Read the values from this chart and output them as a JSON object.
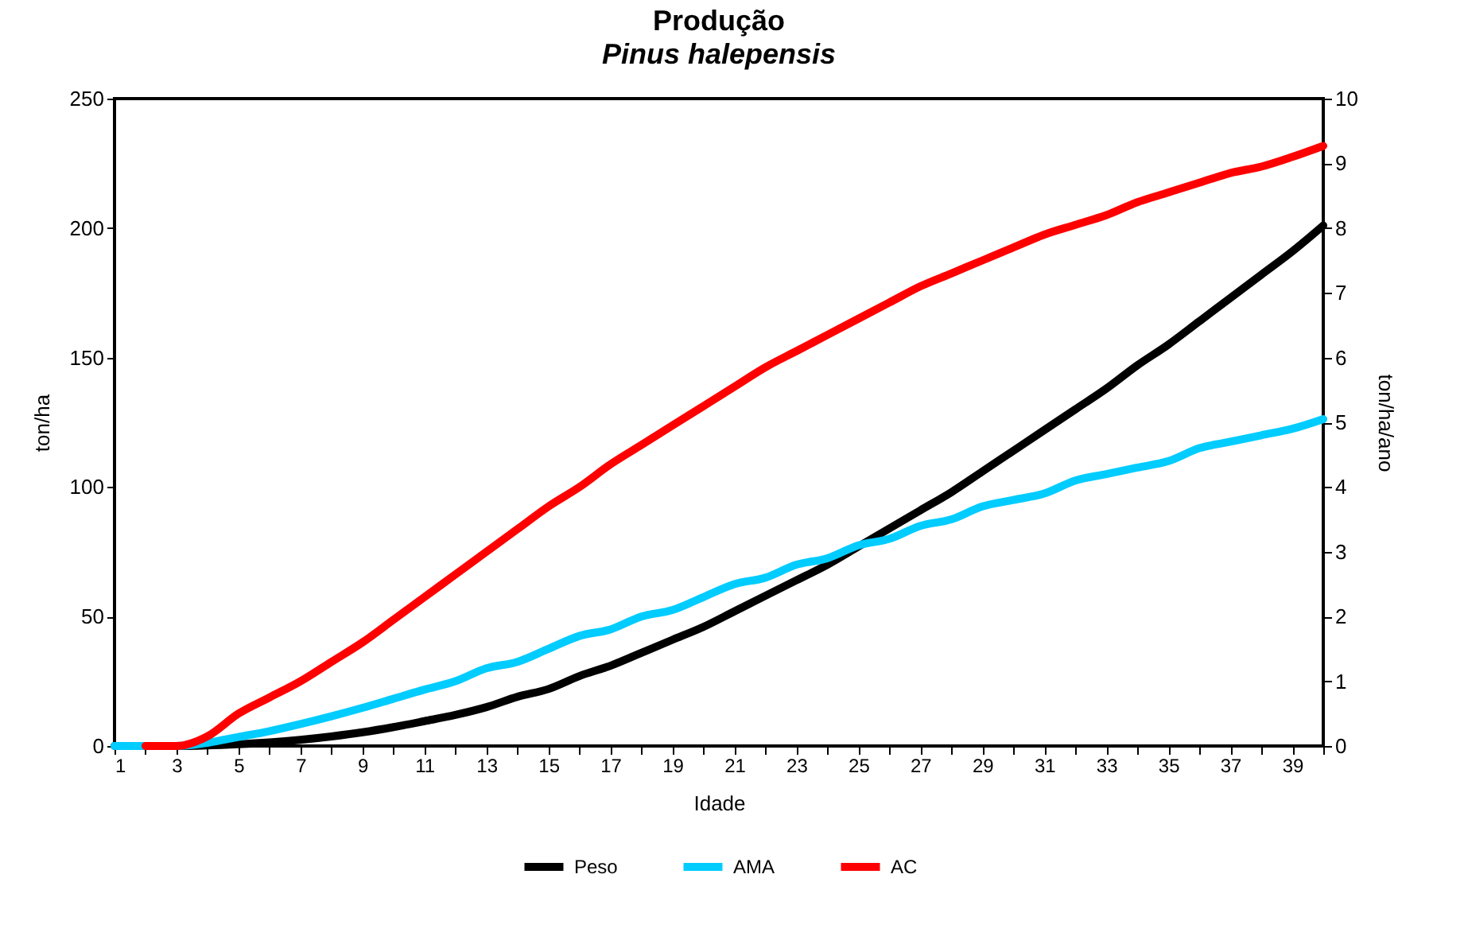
{
  "chart_data": {
    "type": "line",
    "title": "Produção",
    "subtitle": "Pinus halepensis",
    "xlabel": "Idade",
    "ylabel": "ton/ha",
    "y2label": "ton/ha/ano",
    "x": [
      1,
      2,
      3,
      4,
      5,
      6,
      7,
      8,
      9,
      10,
      11,
      12,
      13,
      14,
      15,
      16,
      17,
      18,
      19,
      20,
      21,
      22,
      23,
      24,
      25,
      26,
      27,
      28,
      29,
      30,
      31,
      32,
      33,
      34,
      35,
      36,
      37,
      38,
      39,
      40
    ],
    "xlim": [
      1,
      40
    ],
    "xticks": [
      1,
      {
        "value": 2,
        "label": null
      },
      3,
      {
        "value": 4,
        "label": null
      },
      5,
      {
        "value": 6,
        "label": null
      },
      7,
      {
        "value": 8,
        "label": null
      },
      9,
      {
        "value": 10,
        "label": null
      },
      11,
      {
        "value": 12,
        "label": null
      },
      13,
      {
        "value": 14,
        "label": null
      },
      15,
      {
        "value": 16,
        "label": null
      },
      17,
      {
        "value": 18,
        "label": null
      },
      19,
      {
        "value": 20,
        "label": null
      },
      21,
      {
        "value": 22,
        "label": null
      },
      23,
      {
        "value": 24,
        "label": null
      },
      25,
      {
        "value": 26,
        "label": null
      },
      27,
      {
        "value": 28,
        "label": null
      },
      29,
      {
        "value": 30,
        "label": null
      },
      31,
      {
        "value": 32,
        "label": null
      },
      33,
      {
        "value": 34,
        "label": null
      },
      35,
      {
        "value": 36,
        "label": null
      },
      37,
      {
        "value": 38,
        "label": null
      },
      39,
      {
        "value": 40,
        "label": null
      }
    ],
    "series": [
      {
        "name": "Peso",
        "color": "#000000",
        "values": [
          0,
          0,
          0,
          0.2,
          0.7,
          1.4,
          2.4,
          3.7,
          5.3,
          7.3,
          9.6,
          12,
          15,
          19,
          22,
          27,
          31,
          36,
          41,
          46,
          52,
          58,
          64,
          70,
          77,
          84,
          91,
          98,
          106,
          114,
          122,
          130,
          138,
          147,
          155,
          164,
          173,
          182,
          191,
          201
        ]
      },
      {
        "name": "AMA",
        "color": "#00ccff",
        "axis": "y2",
        "values": [
          0,
          0,
          0,
          0.05,
          0.14,
          0.23,
          0.34,
          0.46,
          0.59,
          0.73,
          0.87,
          1.0,
          1.2,
          1.3,
          1.5,
          1.7,
          1.8,
          2.0,
          2.1,
          2.3,
          2.5,
          2.6,
          2.8,
          2.9,
          3.1,
          3.2,
          3.4,
          3.5,
          3.7,
          3.8,
          3.9,
          4.1,
          4.2,
          4.3,
          4.4,
          4.6,
          4.7,
          4.8,
          4.9,
          5.05
        ]
      },
      {
        "name": "AC",
        "color": "#ff0000",
        "axis": "y2",
        "values": [
          null,
          0,
          0,
          0.15,
          0.5,
          0.75,
          1.0,
          1.3,
          1.6,
          1.95,
          2.3,
          2.65,
          3.0,
          3.35,
          3.7,
          4.0,
          4.35,
          4.65,
          4.95,
          5.25,
          5.55,
          5.85,
          6.1,
          6.35,
          6.6,
          6.85,
          7.1,
          7.3,
          7.5,
          7.7,
          7.9,
          8.05,
          8.2,
          8.4,
          8.55,
          8.7,
          8.85,
          8.95,
          9.1,
          9.27
        ]
      }
    ],
    "ylim": [
      0,
      250
    ],
    "yticks": [
      0,
      50,
      100,
      150,
      200,
      250
    ],
    "y2lim": [
      0,
      10
    ],
    "y2ticks": [
      0,
      1,
      2,
      3,
      4,
      5,
      6,
      7,
      8,
      9,
      10
    ],
    "grid": false,
    "legend": "bottom",
    "line_style": "solid",
    "marker": "none"
  }
}
